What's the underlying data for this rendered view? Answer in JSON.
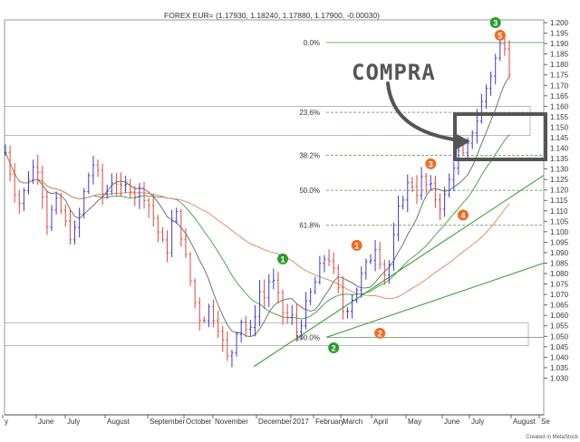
{
  "chart_data": {
    "type": "ohlc",
    "title": "FOREX EUR= (1.17930, 1.18240, 1.17880, 1.17900, -0.00030)",
    "footer": "Created in MetaStock",
    "x_labels": [
      "y",
      "June",
      "July",
      "August",
      "September",
      "October",
      "November",
      "December",
      "2017",
      "February",
      "March",
      "April",
      "May",
      "June",
      "July",
      "August",
      "Se"
    ],
    "y_range": [
      1.025,
      1.2
    ],
    "y_ticks": [
      "1.200",
      "1.195",
      "1.190",
      "1.185",
      "1.180",
      "1.175",
      "1.170",
      "1.165",
      "1.160",
      "1.155",
      "1.150",
      "1.145",
      "1.140",
      "1.135",
      "1.130",
      "1.125",
      "1.120",
      "1.115",
      "1.110",
      "1.105",
      "1.100",
      "1.095",
      "1.090",
      "1.085",
      "1.080",
      "1.075",
      "1.070",
      "1.065",
      "1.060",
      "1.055",
      "1.050",
      "1.045",
      "1.040",
      "1.035",
      "1.030"
    ],
    "fibonacci_levels": [
      {
        "label": "0.0%",
        "value": 1.1905
      },
      {
        "label": "23.6%",
        "value": 1.1571
      },
      {
        "label": "38.2%",
        "value": 1.1365
      },
      {
        "label": "50.0%",
        "value": 1.1198
      },
      {
        "label": "61.8%",
        "value": 1.1031
      },
      {
        "label": "100.0%",
        "value": 1.0495
      }
    ],
    "price_path": [
      [
        0,
        1.138
      ],
      [
        1,
        1.128
      ],
      [
        2,
        1.118
      ],
      [
        3,
        1.112
      ],
      [
        4,
        1.124
      ],
      [
        5,
        1.129
      ],
      [
        6,
        1.134
      ],
      [
        7,
        1.121
      ],
      [
        8,
        1.104
      ],
      [
        9,
        1.11
      ],
      [
        10,
        1.114
      ],
      [
        11,
        1.108
      ],
      [
        12,
        1.1
      ],
      [
        13,
        1.097
      ],
      [
        14,
        1.105
      ],
      [
        15,
        1.117
      ],
      [
        16,
        1.127
      ],
      [
        17,
        1.133
      ],
      [
        18,
        1.125
      ],
      [
        19,
        1.115
      ],
      [
        20,
        1.123
      ],
      [
        21,
        1.127
      ],
      [
        22,
        1.119
      ],
      [
        23,
        1.121
      ],
      [
        24,
        1.122
      ],
      [
        25,
        1.118
      ],
      [
        26,
        1.12
      ],
      [
        27,
        1.117
      ],
      [
        28,
        1.11
      ],
      [
        29,
        1.103
      ],
      [
        30,
        1.095
      ],
      [
        31,
        1.09
      ],
      [
        32,
        1.104
      ],
      [
        33,
        1.108
      ],
      [
        34,
        1.097
      ],
      [
        35,
        1.083
      ],
      [
        36,
        1.072
      ],
      [
        37,
        1.06
      ],
      [
        38,
        1.058
      ],
      [
        39,
        1.064
      ],
      [
        40,
        1.06
      ],
      [
        41,
        1.055
      ],
      [
        42,
        1.045
      ],
      [
        43,
        1.037
      ],
      [
        44,
        1.047
      ],
      [
        45,
        1.06
      ],
      [
        46,
        1.055
      ],
      [
        47,
        1.05
      ],
      [
        48,
        1.061
      ],
      [
        49,
        1.072
      ],
      [
        50,
        1.068
      ],
      [
        51,
        1.08
      ],
      [
        52,
        1.072
      ],
      [
        53,
        1.064
      ],
      [
        54,
        1.058
      ],
      [
        55,
        1.06
      ],
      [
        56,
        1.052
      ],
      [
        57,
        1.058
      ],
      [
        58,
        1.065
      ],
      [
        59,
        1.072
      ],
      [
        60,
        1.078
      ],
      [
        61,
        1.086
      ],
      [
        62,
        1.09
      ],
      [
        63,
        1.082
      ],
      [
        64,
        1.072
      ],
      [
        65,
        1.062
      ],
      [
        66,
        1.065
      ],
      [
        67,
        1.07
      ],
      [
        68,
        1.075
      ],
      [
        69,
        1.082
      ],
      [
        70,
        1.085
      ],
      [
        71,
        1.095
      ],
      [
        72,
        1.088
      ],
      [
        73,
        1.08
      ],
      [
        74,
        1.085
      ],
      [
        75,
        1.1
      ],
      [
        76,
        1.115
      ],
      [
        77,
        1.12
      ],
      [
        78,
        1.125
      ],
      [
        79,
        1.118
      ],
      [
        80,
        1.125
      ],
      [
        81,
        1.122
      ],
      [
        82,
        1.12
      ],
      [
        83,
        1.115
      ],
      [
        84,
        1.112
      ],
      [
        85,
        1.12
      ],
      [
        86,
        1.13
      ],
      [
        87,
        1.138
      ],
      [
        88,
        1.135
      ],
      [
        89,
        1.14
      ],
      [
        90,
        1.15
      ],
      [
        91,
        1.155
      ],
      [
        92,
        1.165
      ],
      [
        93,
        1.172
      ],
      [
        94,
        1.18
      ],
      [
        95,
        1.188
      ],
      [
        96,
        1.192
      ],
      [
        97,
        1.178
      ]
    ],
    "markers": [
      {
        "label": "1",
        "color": "#2a9d2a",
        "value": 1.087,
        "bar": 60
      },
      {
        "label": "2",
        "color": "#2a9d2a",
        "value": 1.0445,
        "bar": 71
      },
      {
        "label": "3",
        "color": "#2a9d2a",
        "value": 1.2,
        "bar": 106
      },
      {
        "label": "1",
        "color": "#f26a21",
        "value": 1.0935,
        "bar": 76
      },
      {
        "label": "2",
        "color": "#f26a21",
        "value": 1.0515,
        "bar": 81
      },
      {
        "label": "3",
        "color": "#f26a21",
        "value": 1.1325,
        "bar": 92
      },
      {
        "label": "4",
        "color": "#f26a21",
        "value": 1.108,
        "bar": 99
      },
      {
        "label": "5",
        "color": "#f26a21",
        "value": 1.194,
        "bar": 107
      }
    ],
    "annotation": "COMPRA",
    "colors": {
      "up_bar": "#3b3bd9",
      "down_bar": "#e0463c",
      "ma_fast": "#666666",
      "ma_mid": "#3c9e3c",
      "ma_slow": "#e08060",
      "fib_line": "#6aa06a",
      "trendline": "#3c9e3c",
      "annotation": "#555555"
    }
  }
}
